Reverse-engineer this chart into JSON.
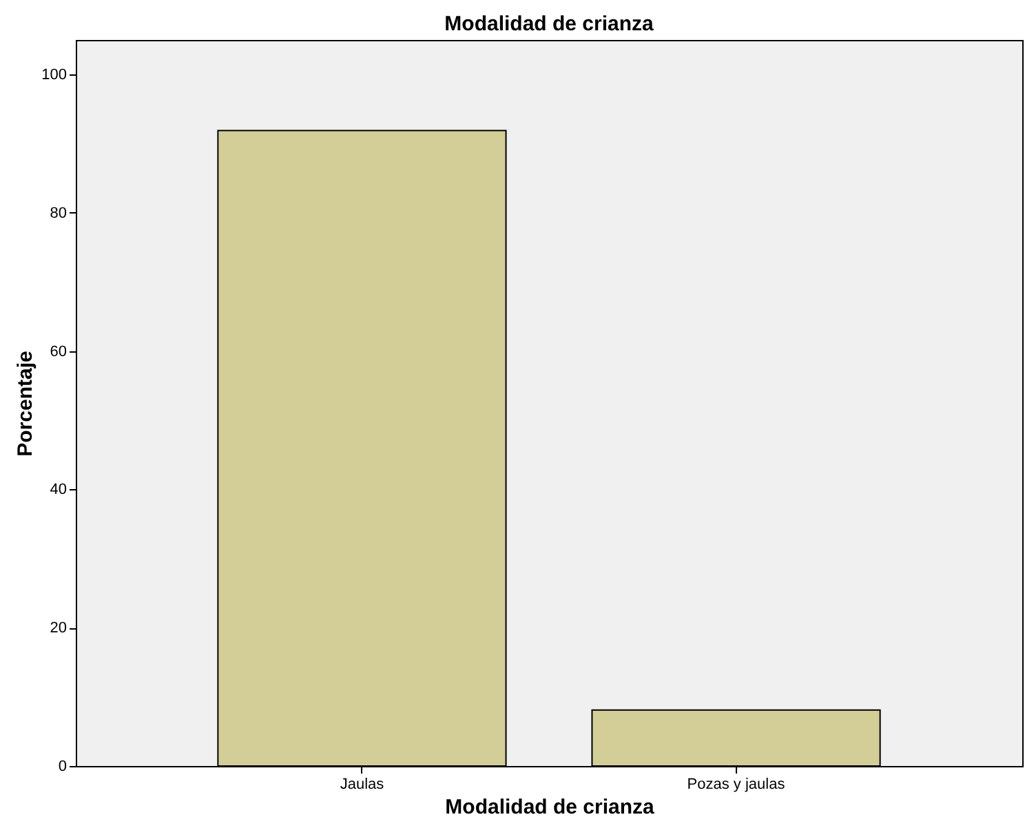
{
  "chart_data": {
    "type": "bar",
    "title": "Modalidad de crianza",
    "xlabel": "Modalidad de crianza",
    "ylabel": "Porcentaje",
    "categories": [
      "Jaulas",
      "Pozas y jaulas"
    ],
    "values": [
      91.9,
      8.1
    ],
    "color": "#d3ce97",
    "ylim": [
      0,
      105
    ],
    "yticks": [
      0,
      20,
      40,
      60,
      80,
      100
    ],
    "grid": false
  }
}
